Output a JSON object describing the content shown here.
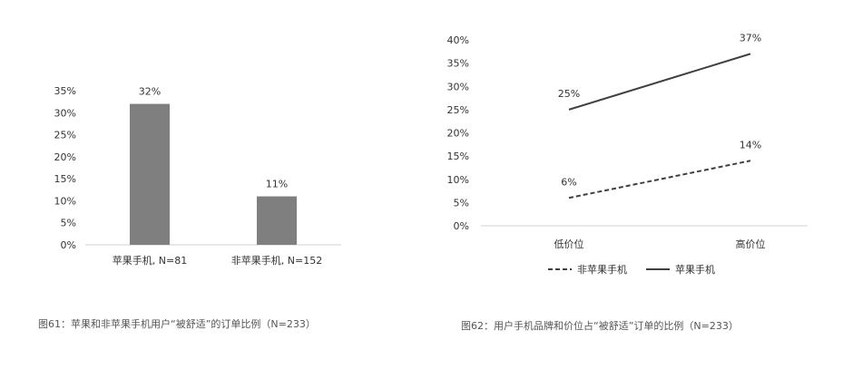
{
  "charts": [
    {
      "type": "bar",
      "caption": "图61：苹果和非苹果手机用户“被舒适”的订单比例（N=233）",
      "categories": [
        "苹果手机, N=81",
        "非苹果手机, N=152"
      ],
      "values": [
        32,
        11
      ],
      "value_labels": [
        "32%",
        "11%"
      ],
      "ylim": [
        0,
        35
      ],
      "yticks": [
        "0%",
        "5%",
        "10%",
        "15%",
        "20%",
        "25%",
        "30%",
        "35%"
      ],
      "bar_color": "#7f7f7f"
    },
    {
      "type": "line",
      "caption": "图62：用户手机品牌和价位占“被舒适”订单的比例（N=233）",
      "categories": [
        "低价位",
        "高价位"
      ],
      "series": [
        {
          "name": "非苹果手机",
          "values": [
            6,
            14
          ],
          "value_labels": [
            "6%",
            "14%"
          ],
          "style": "dashed"
        },
        {
          "name": "苹果手机",
          "values": [
            25,
            37
          ],
          "value_labels": [
            "25%",
            "37%"
          ],
          "style": "solid"
        }
      ],
      "ylim": [
        0,
        40
      ],
      "yticks": [
        "0%",
        "5%",
        "10%",
        "15%",
        "20%",
        "25%",
        "30%",
        "35%",
        "40%"
      ],
      "legend_position": "bottom",
      "line_color": "#404040"
    }
  ],
  "chart_data": [
    {
      "type": "bar",
      "categories": [
        "苹果手机, N=81",
        "非苹果手机, N=152"
      ],
      "values": [
        32,
        11
      ],
      "ylim": [
        0,
        35
      ],
      "unit": "%",
      "title": ""
    },
    {
      "type": "line",
      "categories": [
        "低价位",
        "高价位"
      ],
      "series": [
        {
          "name": "非苹果手机",
          "values": [
            6,
            14
          ]
        },
        {
          "name": "苹果手机",
          "values": [
            25,
            37
          ]
        }
      ],
      "ylim": [
        0,
        40
      ],
      "unit": "%",
      "legend": "bottom",
      "title": ""
    }
  ]
}
